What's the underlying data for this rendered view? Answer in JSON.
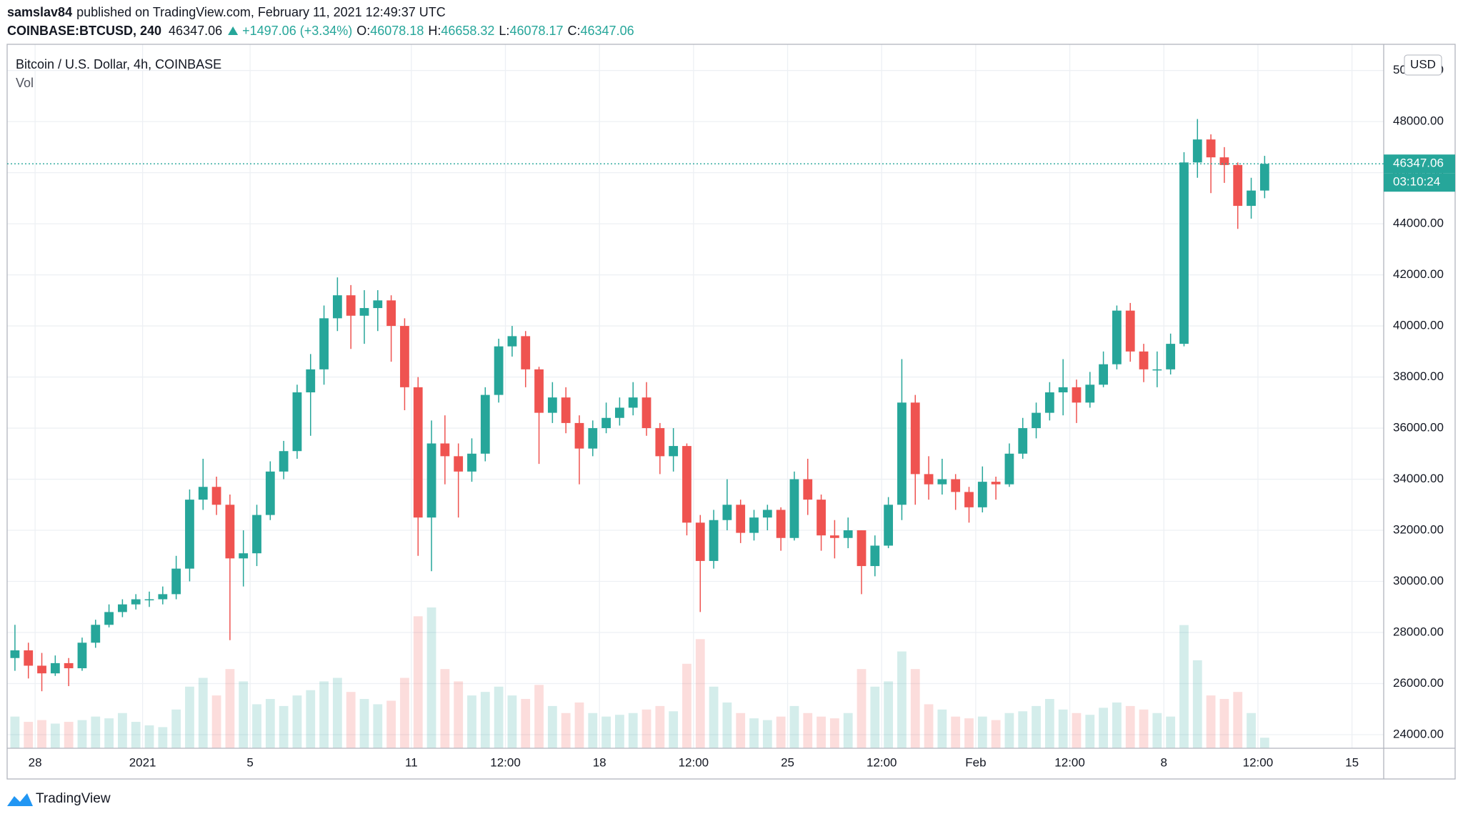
{
  "header": {
    "author": "samslav84",
    "published": "published on TradingView.com, February 11, 2021 12:49:37 UTC",
    "symbol": "COINBASE:BTCUSD, 240",
    "last": "46347.06",
    "change": "+1497.06 (+3.34%)",
    "o_label": "O:",
    "o": "46078.18",
    "h_label": "H:",
    "h": "46658.32",
    "l_label": "L:",
    "l": "46078.17",
    "c_label": "C:",
    "c": "46347.06"
  },
  "chart_data": {
    "type": "candlestick",
    "title": "Bitcoin / U.S. Dollar, 4h, COINBASE",
    "volume_label": "Vol",
    "currency": "USD",
    "countdown": "03:10:24",
    "up_color": "#26a69a",
    "down_color": "#ef5350",
    "grid": true,
    "xlim": [
      -5.04,
      46.18
    ],
    "xticks": [
      {
        "value": -4,
        "label": "28"
      },
      {
        "value": 0,
        "label": "2021"
      },
      {
        "value": 4,
        "label": "5"
      },
      {
        "value": 10,
        "label": "11"
      },
      {
        "value": 13.5,
        "label": "12:00"
      },
      {
        "value": 17,
        "label": "18"
      },
      {
        "value": 20.5,
        "label": "12:00"
      },
      {
        "value": 24,
        "label": "25"
      },
      {
        "value": 27.5,
        "label": "12:00"
      },
      {
        "value": 31,
        "label": "Feb"
      },
      {
        "value": 34.5,
        "label": "12:00"
      },
      {
        "value": 38,
        "label": "8"
      },
      {
        "value": 41.5,
        "label": "12:00"
      },
      {
        "value": 45,
        "label": "15"
      }
    ],
    "ylim": [
      23468,
      51025
    ],
    "yticks": [
      {
        "value": 24000,
        "label": "24000.00"
      },
      {
        "value": 26000,
        "label": "26000.00"
      },
      {
        "value": 28000,
        "label": "28000.00"
      },
      {
        "value": 30000,
        "label": "30000.00"
      },
      {
        "value": 32000,
        "label": "32000.00"
      },
      {
        "value": 34000,
        "label": "34000.00"
      },
      {
        "value": 36000,
        "label": "36000.00"
      },
      {
        "value": 38000,
        "label": "38000.00"
      },
      {
        "value": 40000,
        "label": "40000.00"
      },
      {
        "value": 42000,
        "label": "42000.00"
      },
      {
        "value": 44000,
        "label": "44000.00"
      },
      {
        "value": 46000,
        "label": "46000.00"
      },
      {
        "value": 48000,
        "label": "48000.00"
      },
      {
        "value": 50000,
        "label": "50000.00"
      }
    ],
    "x": [
      -5,
      -4.5,
      -4,
      -3.5,
      -3,
      -2.5,
      -2,
      -1.5,
      -1,
      -0.5,
      0,
      0.5,
      1,
      1.5,
      2,
      2.5,
      3,
      3.5,
      4,
      4.5,
      5,
      5.5,
      6,
      6.5,
      7,
      7.5,
      8,
      8.5,
      9,
      9.5,
      10,
      10.5,
      11,
      11.5,
      12,
      12.5,
      13,
      13.5,
      14,
      14.5,
      15,
      15.5,
      16,
      16.5,
      17,
      17.5,
      18,
      18.5,
      19,
      19.5,
      20,
      20.5,
      21,
      21.5,
      22,
      22.5,
      23,
      23.5,
      24,
      24.5,
      25,
      25.5,
      26,
      26.5,
      27,
      27.5,
      28,
      28.5,
      29,
      29.5,
      30,
      30.5,
      31,
      31.5,
      32,
      32.5,
      33,
      33.5,
      34,
      34.5,
      35,
      35.5,
      36,
      36.5,
      37,
      37.5,
      38,
      38.5,
      39,
      39.5,
      40,
      40.5,
      41,
      41.5
    ],
    "open": [
      27000,
      27300,
      26700,
      26400,
      26800,
      26600,
      27600,
      28300,
      28800,
      29100,
      29300,
      29300,
      29500,
      30500,
      33200,
      33700,
      33000,
      30900,
      31100,
      32600,
      34300,
      35100,
      37400,
      38300,
      40300,
      41200,
      40400,
      40700,
      41000,
      40000,
      37600,
      32500,
      35400,
      34900,
      34300,
      35000,
      37300,
      39200,
      39600,
      38300,
      36600,
      37200,
      36200,
      35200,
      36000,
      36400,
      36800,
      37200,
      36000,
      34900,
      35300,
      32300,
      30800,
      32400,
      33000,
      31900,
      32500,
      32800,
      31700,
      34000,
      33200,
      31800,
      31700,
      32000,
      30600,
      31400,
      33000,
      37000,
      34200,
      33800,
      34000,
      33500,
      32900,
      33900,
      33800,
      35000,
      36000,
      36600,
      37400,
      37600,
      37000,
      37700,
      38500,
      40600,
      39000,
      38300,
      38300,
      39300,
      46400,
      47300,
      46600,
      46300,
      44700,
      45300
    ],
    "high": [
      28300,
      27600,
      27200,
      27100,
      27000,
      27800,
      28500,
      29100,
      29300,
      29500,
      29600,
      29800,
      31000,
      33600,
      34800,
      34100,
      33400,
      32000,
      33000,
      34700,
      35500,
      37700,
      38900,
      40800,
      41900,
      41600,
      41400,
      41400,
      41200,
      40300,
      38000,
      36300,
      36500,
      35400,
      35600,
      37600,
      39500,
      40000,
      39800,
      38400,
      37800,
      37600,
      36500,
      36300,
      37000,
      37200,
      37800,
      37800,
      36200,
      36000,
      35400,
      32600,
      32800,
      34000,
      33200,
      32800,
      33000,
      32900,
      34300,
      34800,
      33400,
      32400,
      32500,
      32000,
      31800,
      33300,
      38700,
      37300,
      34900,
      34800,
      34200,
      33700,
      34500,
      34100,
      35400,
      36400,
      37000,
      37800,
      38700,
      37900,
      38200,
      39000,
      40800,
      40900,
      39300,
      39000,
      39700,
      46800,
      48100,
      47500,
      47000,
      46400,
      45800,
      46658.32
    ],
    "low": [
      26500,
      26200,
      25700,
      26300,
      25900,
      26500,
      27400,
      28200,
      28600,
      28900,
      29000,
      29100,
      29300,
      30000,
      32800,
      32600,
      27700,
      29800,
      30600,
      32400,
      34000,
      34800,
      35700,
      37700,
      39800,
      39100,
      39300,
      39800,
      38600,
      36700,
      31000,
      30400,
      33800,
      32500,
      33900,
      34700,
      37000,
      38800,
      37600,
      34600,
      36200,
      35800,
      33800,
      34900,
      35800,
      36100,
      36500,
      35700,
      34200,
      34300,
      31800,
      28800,
      30500,
      32000,
      31500,
      31600,
      32000,
      31200,
      31600,
      32600,
      31200,
      30900,
      31300,
      29500,
      30200,
      31300,
      32400,
      33000,
      33200,
      33400,
      32800,
      32300,
      32700,
      33200,
      33700,
      34800,
      35600,
      36300,
      36500,
      36200,
      36800,
      37600,
      38300,
      38600,
      37800,
      37600,
      38100,
      39200,
      45800,
      45200,
      45600,
      43800,
      44200,
      45000
    ],
    "close": [
      27300,
      26700,
      26400,
      26800,
      26600,
      27600,
      28300,
      28800,
      29100,
      29300,
      29300,
      29500,
      30500,
      33200,
      33700,
      33000,
      30900,
      31100,
      32600,
      34300,
      35100,
      37400,
      38300,
      40300,
      41200,
      40400,
      40700,
      41000,
      40000,
      37600,
      32500,
      35400,
      34900,
      34300,
      35000,
      37300,
      39200,
      39600,
      38300,
      36600,
      37200,
      36200,
      35200,
      36000,
      36400,
      36800,
      37200,
      36000,
      34900,
      35300,
      32300,
      30800,
      32400,
      33000,
      31900,
      32500,
      32800,
      31700,
      34000,
      33200,
      31800,
      31700,
      32000,
      30600,
      31400,
      33000,
      37000,
      34200,
      33800,
      34000,
      33500,
      32900,
      33900,
      33800,
      35000,
      36000,
      36600,
      37400,
      37600,
      37000,
      37700,
      38500,
      40600,
      39000,
      38300,
      38300,
      39300,
      46400,
      47300,
      46600,
      46300,
      44700,
      45300,
      46347.06
    ],
    "volume": [
      18000,
      15000,
      16000,
      14000,
      15000,
      16000,
      18000,
      17000,
      20000,
      15000,
      13000,
      12000,
      22000,
      35000,
      40000,
      30000,
      45000,
      38000,
      25000,
      28000,
      24000,
      30000,
      33000,
      38000,
      40000,
      32000,
      28000,
      25000,
      27000,
      40000,
      75000,
      80000,
      45000,
      38000,
      30000,
      32000,
      35000,
      30000,
      28000,
      36000,
      24000,
      20000,
      26000,
      20000,
      18000,
      19000,
      20000,
      22000,
      24000,
      21000,
      48000,
      62000,
      35000,
      26000,
      20000,
      17000,
      16000,
      18000,
      24000,
      20000,
      18000,
      17000,
      20000,
      45000,
      35000,
      38000,
      55000,
      45000,
      25000,
      22000,
      18000,
      17000,
      18000,
      16000,
      20000,
      21000,
      24000,
      28000,
      22000,
      20000,
      19000,
      23000,
      26000,
      24000,
      22000,
      20000,
      18000,
      70000,
      50000,
      30000,
      28000,
      32000,
      20000,
      6000
    ]
  },
  "footer": {
    "brand": "TradingView"
  }
}
